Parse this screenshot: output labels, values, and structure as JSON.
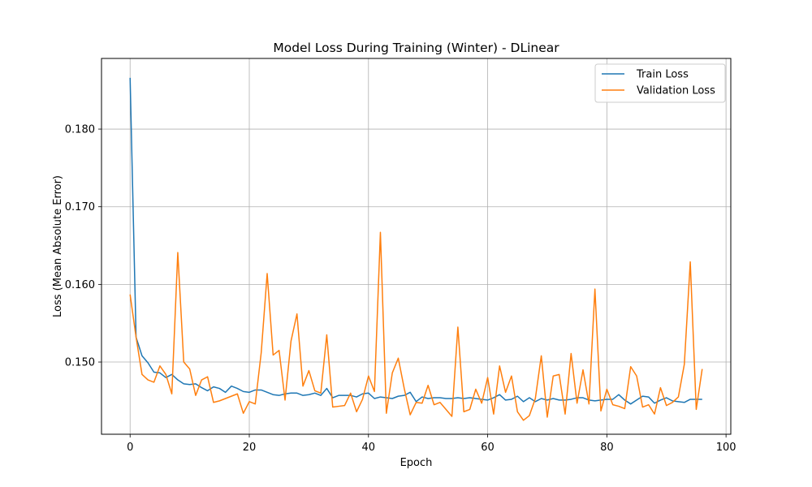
{
  "chart_data": {
    "type": "line",
    "title": "Model Loss During Training (Winter) - DLinear",
    "xlabel": "Epoch",
    "ylabel": "Loss (Mean Absolute Error)",
    "xlim": [
      -4.8,
      100.8
    ],
    "ylim": [
      0.1407,
      0.1891
    ],
    "xticks": [
      0,
      20,
      40,
      60,
      80,
      100
    ],
    "yticks": [
      0.15,
      0.16,
      0.17,
      0.18
    ],
    "ytick_labels": [
      "0.150",
      "0.160",
      "0.170",
      "0.180"
    ],
    "grid": true,
    "legend_position": "top-right",
    "x": [
      0,
      1,
      2,
      3,
      4,
      5,
      6,
      7,
      8,
      9,
      10,
      11,
      12,
      13,
      14,
      15,
      16,
      17,
      18,
      19,
      20,
      21,
      22,
      23,
      24,
      25,
      26,
      27,
      28,
      29,
      30,
      31,
      32,
      33,
      34,
      35,
      36,
      37,
      38,
      39,
      40,
      41,
      42,
      43,
      44,
      45,
      46,
      47,
      48,
      49,
      50,
      51,
      52,
      53,
      54,
      55,
      56,
      57,
      58,
      59,
      60,
      61,
      62,
      63,
      64,
      65,
      66,
      67,
      68,
      69,
      70,
      71,
      72,
      73,
      74,
      75,
      76,
      77,
      78,
      79,
      80,
      81,
      82,
      83,
      84,
      85,
      86,
      87,
      88,
      89,
      90,
      91,
      92,
      93,
      94,
      95,
      96
    ],
    "series": [
      {
        "name": "Train Loss",
        "color": "#1f77b4",
        "values": [
          0.1866,
          0.1532,
          0.1508,
          0.1499,
          0.1487,
          0.1486,
          0.148,
          0.1484,
          0.1477,
          0.1472,
          0.1471,
          0.1472,
          0.1467,
          0.1463,
          0.1468,
          0.1466,
          0.1461,
          0.1469,
          0.1466,
          0.1462,
          0.1461,
          0.1464,
          0.1464,
          0.1461,
          0.1458,
          0.1457,
          0.1459,
          0.146,
          0.146,
          0.1457,
          0.1458,
          0.146,
          0.1457,
          0.1466,
          0.1454,
          0.1457,
          0.1457,
          0.1457,
          0.1455,
          0.1459,
          0.146,
          0.1453,
          0.1455,
          0.1454,
          0.1453,
          0.1456,
          0.1457,
          0.1461,
          0.1449,
          0.1455,
          0.1453,
          0.1454,
          0.1454,
          0.1453,
          0.1453,
          0.1454,
          0.1453,
          0.1454,
          0.1453,
          0.1452,
          0.1451,
          0.1454,
          0.1458,
          0.1451,
          0.1452,
          0.1456,
          0.1449,
          0.1454,
          0.1449,
          0.1453,
          0.1451,
          0.1453,
          0.1451,
          0.1451,
          0.1452,
          0.1454,
          0.1454,
          0.1451,
          0.145,
          0.1451,
          0.1452,
          0.1452,
          0.1458,
          0.1451,
          0.1446,
          0.1451,
          0.1456,
          0.1455,
          0.1447,
          0.1451,
          0.1454,
          0.145,
          0.1449,
          0.1448,
          0.1452,
          0.1452,
          0.1452
        ]
      },
      {
        "name": "Validation Loss",
        "color": "#ff7f0e",
        "values": [
          0.1587,
          0.1532,
          0.1484,
          0.1477,
          0.1474,
          0.1495,
          0.1484,
          0.1459,
          0.1641,
          0.15,
          0.1491,
          0.1457,
          0.1477,
          0.1481,
          0.1448,
          0.145,
          0.1453,
          0.1456,
          0.1459,
          0.1434,
          0.1449,
          0.1446,
          0.1512,
          0.1614,
          0.1509,
          0.1515,
          0.1451,
          0.1527,
          0.1562,
          0.1469,
          0.1489,
          0.1463,
          0.146,
          0.1535,
          0.1442,
          0.1443,
          0.1444,
          0.146,
          0.1436,
          0.1452,
          0.1482,
          0.1462,
          0.1667,
          0.1434,
          0.1486,
          0.1505,
          0.1466,
          0.1432,
          0.1448,
          0.1447,
          0.147,
          0.1445,
          0.1448,
          0.1439,
          0.143,
          0.1545,
          0.1436,
          0.1439,
          0.1465,
          0.1447,
          0.148,
          0.1433,
          0.1495,
          0.1461,
          0.1482,
          0.1436,
          0.1425,
          0.1431,
          0.1453,
          0.1508,
          0.1429,
          0.1482,
          0.1484,
          0.1433,
          0.1511,
          0.1447,
          0.149,
          0.1446,
          0.1594,
          0.1437,
          0.1465,
          0.1445,
          0.1443,
          0.144,
          0.1494,
          0.1482,
          0.1442,
          0.1445,
          0.1433,
          0.1467,
          0.1444,
          0.1448,
          0.1455,
          0.1497,
          0.1629,
          0.1439,
          0.1491
        ]
      }
    ]
  }
}
